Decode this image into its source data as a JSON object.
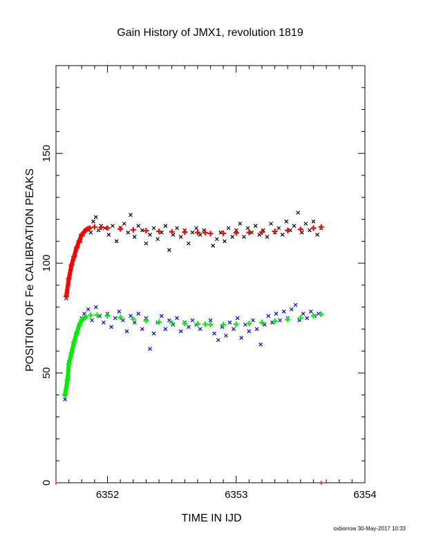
{
  "chart_data": {
    "type": "scatter",
    "title": "Gain History of JMX1, revolution 1819",
    "xlabel": "TIME IN IJD",
    "ylabel": "POSITION OF Fe CALIBRATION PEAKS",
    "xlim": [
      6351.6,
      6354.0
    ],
    "ylim": [
      0,
      190
    ],
    "x_ticks": [
      {
        "value": 6352,
        "label": "6352"
      },
      {
        "value": 6353,
        "label": "6353"
      },
      {
        "value": 6354,
        "label": "6354"
      }
    ],
    "y_ticks": [
      {
        "value": 0,
        "label": "0"
      },
      {
        "value": 50,
        "label": "50"
      },
      {
        "value": 100,
        "label": "100"
      },
      {
        "value": 150,
        "label": "150"
      }
    ],
    "grid": false,
    "legend": "none",
    "colors": {
      "upper_measured": "#000000",
      "upper_fit": "#ff0000",
      "lower_measured": "#0000ff",
      "lower_fit": "#00ee00",
      "end_markers": "#ff0000"
    },
    "series": [
      {
        "marker": "x",
        "color_key": "upper_measured",
        "points": [
          [
            6351.68,
            84
          ],
          [
            6351.69,
            87
          ],
          [
            6351.7,
            91
          ],
          [
            6351.71,
            95
          ],
          [
            6351.72,
            98
          ],
          [
            6351.73,
            101
          ],
          [
            6351.75,
            104
          ],
          [
            6351.77,
            108
          ],
          [
            6351.79,
            110
          ],
          [
            6351.81,
            113
          ],
          [
            6351.83,
            115
          ],
          [
            6351.85,
            116
          ],
          [
            6351.87,
            114
          ],
          [
            6351.89,
            119
          ],
          [
            6351.91,
            121
          ],
          [
            6351.93,
            115
          ],
          [
            6351.95,
            117
          ],
          [
            6351.98,
            116
          ],
          [
            6352.01,
            113
          ],
          [
            6352.04,
            117
          ],
          [
            6352.07,
            110
          ],
          [
            6352.1,
            116
          ],
          [
            6352.13,
            118
          ],
          [
            6352.16,
            114
          ],
          [
            6352.18,
            122
          ],
          [
            6352.21,
            112
          ],
          [
            6352.24,
            117
          ],
          [
            6352.27,
            115
          ],
          [
            6352.3,
            109
          ],
          [
            6352.33,
            113
          ],
          [
            6352.36,
            116
          ],
          [
            6352.39,
            111
          ],
          [
            6352.42,
            114
          ],
          [
            6352.45,
            117
          ],
          [
            6352.48,
            106
          ],
          [
            6352.51,
            113
          ],
          [
            6352.54,
            116
          ],
          [
            6352.57,
            112
          ],
          [
            6352.6,
            115
          ],
          [
            6352.63,
            109
          ],
          [
            6352.66,
            114
          ],
          [
            6352.69,
            116
          ],
          [
            6352.72,
            113
          ],
          [
            6352.75,
            115
          ],
          [
            6352.82,
            108
          ],
          [
            6352.85,
            111
          ],
          [
            6352.88,
            114
          ],
          [
            6352.91,
            110
          ],
          [
            6352.94,
            116
          ],
          [
            6352.97,
            112
          ],
          [
            6353.0,
            115
          ],
          [
            6353.03,
            118
          ],
          [
            6353.06,
            112
          ],
          [
            6353.09,
            116
          ],
          [
            6353.12,
            114
          ],
          [
            6353.15,
            117
          ],
          [
            6353.18,
            113
          ],
          [
            6353.21,
            115
          ],
          [
            6353.24,
            112
          ],
          [
            6353.27,
            118
          ],
          [
            6353.3,
            114
          ],
          [
            6353.33,
            116
          ],
          [
            6353.36,
            113
          ],
          [
            6353.39,
            119
          ],
          [
            6353.42,
            115
          ],
          [
            6353.45,
            117
          ],
          [
            6353.48,
            123
          ],
          [
            6353.51,
            114
          ],
          [
            6353.54,
            118
          ],
          [
            6353.57,
            115
          ],
          [
            6353.6,
            119
          ],
          [
            6353.63,
            113
          ],
          [
            6353.66,
            116
          ]
        ]
      },
      {
        "marker": "x",
        "color_key": "lower_measured",
        "points": [
          [
            6351.67,
            38
          ],
          [
            6351.68,
            43
          ],
          [
            6351.69,
            47
          ],
          [
            6351.7,
            55
          ],
          [
            6351.72,
            59
          ],
          [
            6351.74,
            63
          ],
          [
            6351.76,
            68
          ],
          [
            6351.78,
            72
          ],
          [
            6351.8,
            75
          ],
          [
            6351.82,
            77
          ],
          [
            6351.85,
            79
          ],
          [
            6351.88,
            74
          ],
          [
            6351.91,
            80
          ],
          [
            6351.94,
            76
          ],
          [
            6351.97,
            73
          ],
          [
            6352.0,
            77
          ],
          [
            6352.03,
            71
          ],
          [
            6352.06,
            75
          ],
          [
            6352.09,
            78
          ],
          [
            6352.12,
            74
          ],
          [
            6352.15,
            69
          ],
          [
            6352.18,
            76
          ],
          [
            6352.21,
            73
          ],
          [
            6352.24,
            77
          ],
          [
            6352.27,
            70
          ],
          [
            6352.3,
            75
          ],
          [
            6352.33,
            61
          ],
          [
            6352.36,
            68
          ],
          [
            6352.39,
            73
          ],
          [
            6352.42,
            76
          ],
          [
            6352.45,
            70
          ],
          [
            6352.48,
            74
          ],
          [
            6352.51,
            72
          ],
          [
            6352.54,
            75
          ],
          [
            6352.57,
            69
          ],
          [
            6352.6,
            73
          ],
          [
            6352.63,
            71
          ],
          [
            6352.66,
            74
          ],
          [
            6352.69,
            72
          ],
          [
            6352.72,
            70
          ],
          [
            6352.8,
            74
          ],
          [
            6352.83,
            68
          ],
          [
            6352.86,
            65
          ],
          [
            6352.89,
            71
          ],
          [
            6352.92,
            67
          ],
          [
            6352.95,
            73
          ],
          [
            6352.98,
            70
          ],
          [
            6353.01,
            75
          ],
          [
            6353.04,
            66
          ],
          [
            6353.07,
            72
          ],
          [
            6353.1,
            69
          ],
          [
            6353.13,
            74
          ],
          [
            6353.16,
            70
          ],
          [
            6353.19,
            63
          ],
          [
            6353.22,
            72
          ],
          [
            6353.25,
            76
          ],
          [
            6353.28,
            73
          ],
          [
            6353.31,
            77
          ],
          [
            6353.34,
            74
          ],
          [
            6353.37,
            78
          ],
          [
            6353.4,
            75
          ],
          [
            6353.43,
            79
          ],
          [
            6353.46,
            81
          ],
          [
            6353.49,
            74
          ],
          [
            6353.52,
            77
          ],
          [
            6353.55,
            75
          ],
          [
            6353.58,
            78
          ],
          [
            6353.61,
            76
          ],
          [
            6353.64,
            77
          ]
        ]
      },
      {
        "marker": "fit",
        "color_key": "upper_fit",
        "points": [
          [
            6351.68,
            85
          ],
          [
            6351.7,
            93
          ],
          [
            6351.72,
            99
          ],
          [
            6351.74,
            103
          ],
          [
            6351.76,
            107
          ],
          [
            6351.78,
            110
          ],
          [
            6351.8,
            113
          ],
          [
            6351.83,
            115
          ],
          [
            6351.86,
            116
          ],
          [
            6351.9,
            116.5
          ],
          [
            6351.95,
            116.3
          ],
          [
            6352.0,
            116
          ],
          [
            6352.1,
            115.6
          ],
          [
            6352.2,
            115.2
          ],
          [
            6352.3,
            114.8
          ],
          [
            6352.4,
            114.5
          ],
          [
            6352.5,
            114.3
          ],
          [
            6352.6,
            114.1
          ],
          [
            6352.7,
            114
          ],
          [
            6352.76,
            113.9
          ],
          [
            6352.8,
            113.5
          ],
          [
            6352.9,
            113.6
          ],
          [
            6353.0,
            113.8
          ],
          [
            6353.1,
            114
          ],
          [
            6353.2,
            114.2
          ],
          [
            6353.3,
            114.5
          ],
          [
            6353.4,
            114.9
          ],
          [
            6353.5,
            115.4
          ],
          [
            6353.6,
            116
          ],
          [
            6353.66,
            116.5
          ]
        ]
      },
      {
        "marker": "fit",
        "color_key": "lower_fit",
        "points": [
          [
            6351.67,
            40
          ],
          [
            6351.69,
            47
          ],
          [
            6351.7,
            54
          ],
          [
            6351.72,
            59
          ],
          [
            6351.74,
            64
          ],
          [
            6351.76,
            68
          ],
          [
            6351.78,
            71.5
          ],
          [
            6351.8,
            74
          ],
          [
            6351.83,
            75.5
          ],
          [
            6351.87,
            76.3
          ],
          [
            6351.92,
            76.4
          ],
          [
            6352.0,
            76
          ],
          [
            6352.1,
            75.3
          ],
          [
            6352.2,
            74.5
          ],
          [
            6352.3,
            73.8
          ],
          [
            6352.4,
            73.2
          ],
          [
            6352.5,
            72.8
          ],
          [
            6352.6,
            72.5
          ],
          [
            6352.7,
            72.3
          ],
          [
            6352.76,
            72.2
          ],
          [
            6352.8,
            72
          ],
          [
            6352.9,
            72
          ],
          [
            6353.0,
            72.2
          ],
          [
            6353.1,
            72.5
          ],
          [
            6353.2,
            73
          ],
          [
            6353.3,
            73.6
          ],
          [
            6353.4,
            74.3
          ],
          [
            6353.5,
            75.1
          ],
          [
            6353.6,
            76
          ],
          [
            6353.66,
            76.7
          ]
        ]
      }
    ],
    "end_markers_x": [
      6351.6,
      6353.66
    ]
  },
  "footer": {
    "credit": "oxborrow 30-May-2017 10:33"
  }
}
